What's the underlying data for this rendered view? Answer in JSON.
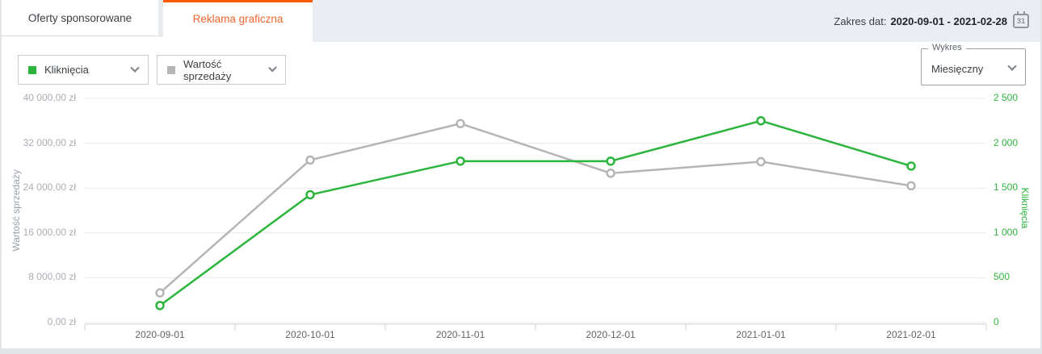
{
  "tabs": {
    "sponsored": "Oferty sponsorowane",
    "display": "Reklama graficzna"
  },
  "date_range": {
    "label": "Zakres dat:",
    "value": "2020-09-01 - 2021-02-28",
    "calendar_day": "31"
  },
  "selectors": {
    "metric1": {
      "label": "Kliknięcia",
      "swatch": "#2cb53c"
    },
    "metric2": {
      "label": "Wartość sprzedaży",
      "swatch": "#b5b5b5"
    },
    "chart_type": {
      "label": "Wykres",
      "value": "Miesięczny"
    }
  },
  "chart_data": {
    "type": "line",
    "categories": [
      "2020-09-01",
      "2020-10-01",
      "2020-11-01",
      "2020-12-01",
      "2021-01-01",
      "2021-02-01"
    ],
    "series": [
      {
        "name": "Kliknięcia",
        "axis": "right",
        "color": "#2cb53c",
        "values": [
          190,
          1425,
          1800,
          1800,
          2250,
          1745
        ]
      },
      {
        "name": "Wartość sprzedaży",
        "axis": "left",
        "color": "#b5b5b5",
        "values": [
          5300,
          29000,
          35500,
          26650,
          28700,
          24400
        ]
      }
    ],
    "left_axis": {
      "label": "Wartość sprzedaży",
      "range": [
        0,
        40000
      ],
      "ticks": [
        "40 000,00 zł",
        "32 000,00 zł",
        "24 000,00 zł",
        "16 000,00 zł",
        "8 000,00 zł",
        "0,00 zł"
      ],
      "tick_color": "#a8aeb5"
    },
    "right_axis": {
      "label": "Kliknięcia",
      "range": [
        0,
        2500
      ],
      "ticks": [
        "2 500",
        "2 000",
        "1 500",
        "1 000",
        "500",
        "0"
      ],
      "tick_color": "#2cb53c"
    },
    "grid": true,
    "gridline_color": "#e9e9e9",
    "axis_line_color": "#ccd0d4"
  },
  "colors": {
    "accent_orange": "#ff5a00",
    "active_tab_text": "#f0662d",
    "band_background": "#eaedf1",
    "page_background": "#e2e5e8"
  }
}
